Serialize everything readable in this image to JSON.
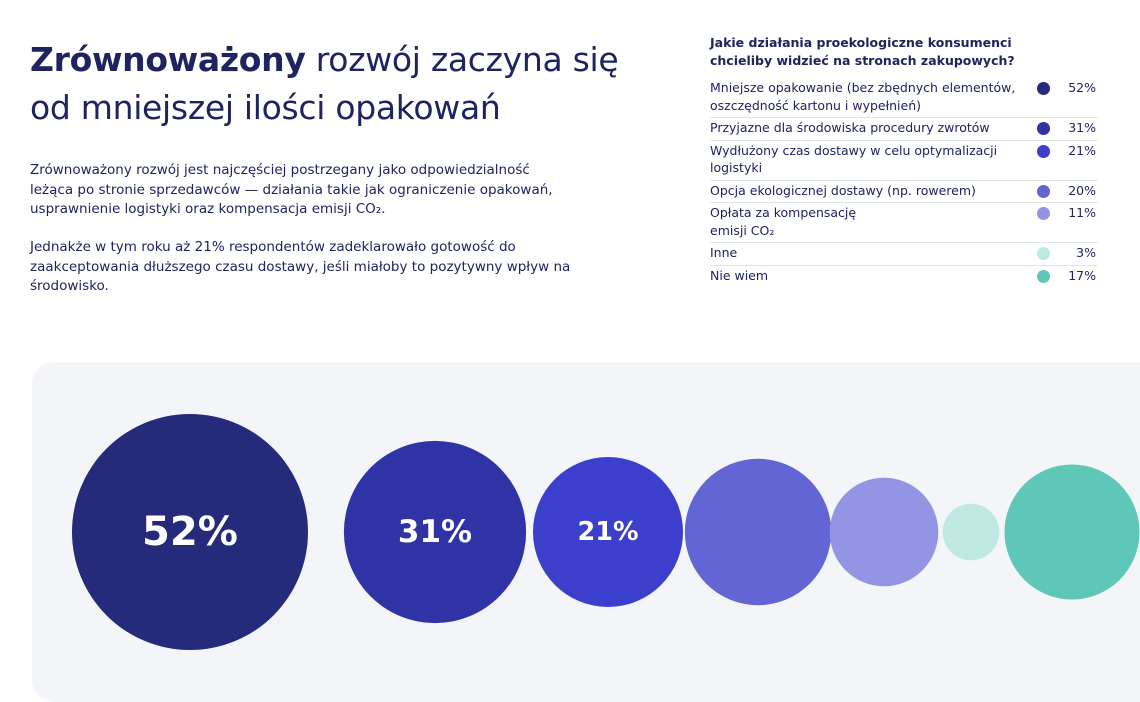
{
  "headline": {
    "bold": "Zrównoważony",
    "rest": " rozwój zaczyna się od mniejszej ilości opakowań"
  },
  "paragraphs": [
    "Zrównoważony rozwój jest najczęściej postrzegany jako odpowiedzialność leżąca po stronie sprzedawców — działania takie jak ograniczenie opakowań, usprawnienie logistyki oraz kompensacja emisji CO₂.",
    "Jednakże w tym roku aż 21% respondentów zadeklarowało gotowość do zaakceptowania dłuższego czasu dostawy, jeśli miałoby to pozytywny wpływ na środowisko."
  ],
  "chart_data": {
    "type": "bubble",
    "title": "Jakie działania proekologiczne konsumenci chcieliby widzieć na stronach zakupowych?",
    "unit": "%",
    "categories": [
      "Mniejsze opakowanie (bez zbędnych elementów, oszczędność kartonu i wypełnień)",
      "Przyjazne dla środowiska procedury zwrotów",
      "Wydłużony czas dostawy w celu optymalizacji logistyki",
      "Opcja ekologicznej dostawy (np. rowerem)",
      "Opłata za kompensację emisji CO₂",
      "Inne",
      "Nie wiem"
    ],
    "values": [
      52,
      31,
      21,
      20,
      11,
      3,
      17
    ],
    "value_labels": [
      "52%",
      "31%",
      "21%",
      "20%",
      "11%",
      "3%",
      "17%"
    ],
    "bubble_labels": [
      "52%",
      "31%",
      "21%",
      "",
      "",
      "",
      ""
    ],
    "colors": [
      "#262a7a",
      "#2f33a6",
      "#3b3fcc",
      "#6465d4",
      "#9394e3",
      "#bfe8e3",
      "#5ec7b7"
    ],
    "legend_position": "top-right"
  }
}
